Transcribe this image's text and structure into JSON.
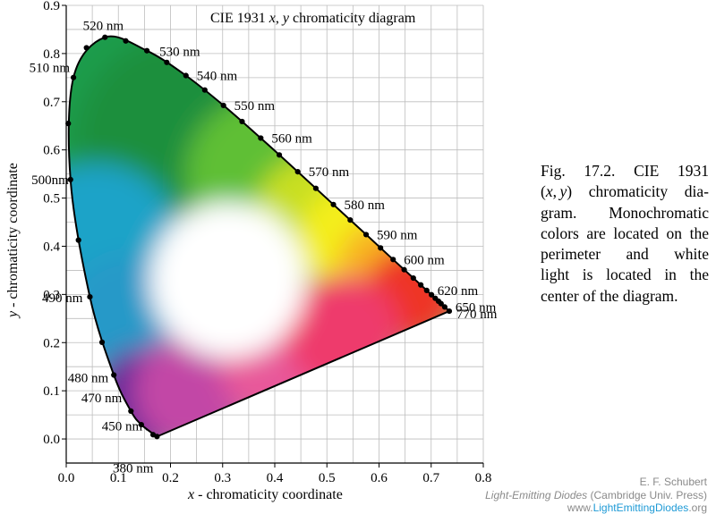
{
  "diagram": {
    "title": "CIE 1931 x, y chromaticity diagram",
    "title_parts": {
      "prefix": "CIE 1931 ",
      "x": "x",
      "sep": ", ",
      "y": "y",
      "suffix": " chromaticity diagram"
    },
    "xlabel": {
      "var": "x",
      "text": " - chromaticity coordinate"
    },
    "ylabel": {
      "var": "y",
      "text": " - chromaticity  coordinate"
    },
    "xlim": [
      0.0,
      0.8
    ],
    "ylim": [
      -0.05,
      0.9
    ],
    "x_ticks": [
      "0.0",
      "0.1",
      "0.2",
      "0.3",
      "0.4",
      "0.5",
      "0.6",
      "0.7",
      "0.8"
    ],
    "y_ticks": [
      "0.0",
      "0.1",
      "0.2",
      "0.3",
      "0.4",
      "0.5",
      "0.6",
      "0.7",
      "0.8",
      "0.9"
    ],
    "grid_step": 0.05,
    "spectral_locus": [
      [
        0.1741,
        0.005
      ],
      [
        0.144,
        0.0297
      ],
      [
        0.1241,
        0.0578
      ],
      [
        0.0913,
        0.1327
      ],
      [
        0.0454,
        0.295
      ],
      [
        0.0082,
        0.5384
      ],
      [
        0.0139,
        0.7502
      ],
      [
        0.0743,
        0.8338
      ],
      [
        0.1547,
        0.8059
      ],
      [
        0.2296,
        0.7543
      ],
      [
        0.3016,
        0.6923
      ],
      [
        0.3731,
        0.6245
      ],
      [
        0.4441,
        0.5547
      ],
      [
        0.5125,
        0.4866
      ],
      [
        0.5752,
        0.4242
      ],
      [
        0.627,
        0.3725
      ],
      [
        0.6658,
        0.334
      ],
      [
        0.6915,
        0.3083
      ],
      [
        0.7079,
        0.292
      ],
      [
        0.7347,
        0.2653
      ]
    ],
    "locus_dots": [
      [
        0.1741,
        0.005
      ],
      [
        0.1666,
        0.0089
      ],
      [
        0.144,
        0.0297
      ],
      [
        0.1241,
        0.0578
      ],
      [
        0.0913,
        0.1327
      ],
      [
        0.0687,
        0.2007
      ],
      [
        0.0454,
        0.295
      ],
      [
        0.0235,
        0.4127
      ],
      [
        0.0082,
        0.5384
      ],
      [
        0.0039,
        0.6548
      ],
      [
        0.0139,
        0.7502
      ],
      [
        0.0389,
        0.812
      ],
      [
        0.0743,
        0.8338
      ],
      [
        0.1142,
        0.8262
      ],
      [
        0.1547,
        0.8059
      ],
      [
        0.1929,
        0.7816
      ],
      [
        0.2296,
        0.7543
      ],
      [
        0.2658,
        0.7243
      ],
      [
        0.3016,
        0.6923
      ],
      [
        0.3373,
        0.6589
      ],
      [
        0.3731,
        0.6245
      ],
      [
        0.4087,
        0.5896
      ],
      [
        0.4441,
        0.5547
      ],
      [
        0.4788,
        0.5202
      ],
      [
        0.5125,
        0.4866
      ],
      [
        0.5448,
        0.4544
      ],
      [
        0.5752,
        0.4242
      ],
      [
        0.6029,
        0.3965
      ],
      [
        0.627,
        0.3725
      ],
      [
        0.6482,
        0.3514
      ],
      [
        0.6658,
        0.334
      ],
      [
        0.6801,
        0.3197
      ],
      [
        0.6915,
        0.3083
      ],
      [
        0.7006,
        0.2993
      ],
      [
        0.7079,
        0.292
      ],
      [
        0.714,
        0.2859
      ],
      [
        0.719,
        0.2809
      ],
      [
        0.726,
        0.274
      ],
      [
        0.7347,
        0.2653
      ]
    ],
    "wavelength_labels": [
      {
        "text": "380 nm",
        "x": 0.1741,
        "y": 0.005
      },
      {
        "text": "450 nm",
        "x": 0.1566,
        "y": 0.0177
      },
      {
        "text": "470 nm",
        "x": 0.1241,
        "y": 0.0578
      },
      {
        "text": "480 nm",
        "x": 0.0913,
        "y": 0.1327
      },
      {
        "text": "490 nm",
        "x": 0.0454,
        "y": 0.295
      },
      {
        "text": "500nm",
        "x": 0.0082,
        "y": 0.5384
      },
      {
        "text": "510 nm",
        "x": 0.0139,
        "y": 0.7502
      },
      {
        "text": "520 nm",
        "x": 0.0743,
        "y": 0.8338
      },
      {
        "text": "530 nm",
        "x": 0.1547,
        "y": 0.8059
      },
      {
        "text": "540 nm",
        "x": 0.2296,
        "y": 0.7543
      },
      {
        "text": "550 nm",
        "x": 0.3016,
        "y": 0.6923
      },
      {
        "text": "560 nm",
        "x": 0.3731,
        "y": 0.6245
      },
      {
        "text": "570 nm",
        "x": 0.4441,
        "y": 0.5547
      },
      {
        "text": "580 nm",
        "x": 0.5125,
        "y": 0.4866
      },
      {
        "text": "590 nm",
        "x": 0.5752,
        "y": 0.4242
      },
      {
        "text": "600 nm",
        "x": 0.627,
        "y": 0.3725
      },
      {
        "text": "620 nm",
        "x": 0.6915,
        "y": 0.3083
      },
      {
        "text": "650 nm",
        "x": 0.726,
        "y": 0.274
      },
      {
        "text": "770 nm",
        "x": 0.7347,
        "y": 0.2653
      }
    ],
    "color_blobs": [
      {
        "x": 0.08,
        "y": 0.7,
        "r": 0.22,
        "color": "#1f9c4b"
      },
      {
        "x": 0.22,
        "y": 0.62,
        "r": 0.2,
        "color": "#1a8f3e"
      },
      {
        "x": 0.38,
        "y": 0.55,
        "r": 0.15,
        "color": "#5fbf35"
      },
      {
        "x": 0.48,
        "y": 0.46,
        "r": 0.12,
        "color": "#c8df22"
      },
      {
        "x": 0.55,
        "y": 0.42,
        "r": 0.1,
        "color": "#f4ee1e"
      },
      {
        "x": 0.6,
        "y": 0.36,
        "r": 0.08,
        "color": "#f8b423"
      },
      {
        "x": 0.66,
        "y": 0.3,
        "r": 0.09,
        "color": "#ee3628"
      },
      {
        "x": 0.06,
        "y": 0.4,
        "r": 0.16,
        "color": "#1aa3c8"
      },
      {
        "x": 0.12,
        "y": 0.25,
        "r": 0.12,
        "color": "#2599c8"
      },
      {
        "x": 0.15,
        "y": 0.08,
        "r": 0.1,
        "color": "#6a2c9a"
      },
      {
        "x": 0.24,
        "y": 0.1,
        "r": 0.11,
        "color": "#c246a6"
      },
      {
        "x": 0.42,
        "y": 0.17,
        "r": 0.13,
        "color": "#e8589a"
      },
      {
        "x": 0.53,
        "y": 0.22,
        "r": 0.11,
        "color": "#ee3a6c"
      },
      {
        "x": 0.31,
        "y": 0.33,
        "r": 0.15,
        "color": "#ffffff"
      }
    ]
  },
  "caption": {
    "lines": [
      "Fig.  17.2.  CIE  1931",
      "(x, y)  chromaticity  dia-",
      "gram.   Monochromatic",
      "colors are located on the",
      "perimeter   and   white",
      "light  is  located  in  the",
      "center of the diagram."
    ]
  },
  "credit": {
    "author": "E. F. Schubert",
    "book_title": "Light-Emitting Diodes",
    "publisher": " (Cambridge Univ. Press)",
    "url_prefix": "www.",
    "url_highlight": "LightEmittingDiodes",
    "url_suffix": ".org"
  }
}
